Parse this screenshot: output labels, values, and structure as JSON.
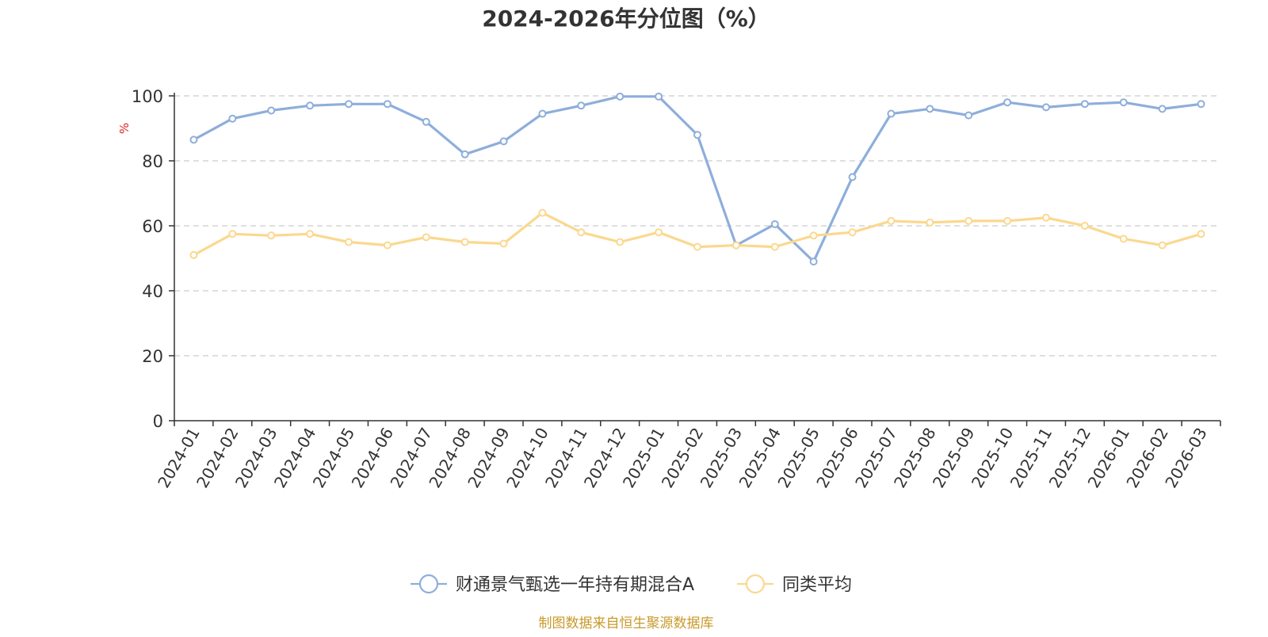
{
  "chart_data": {
    "type": "line",
    "title": "2024-2026年分位图（%）",
    "ylabel": "%",
    "xlabel": "",
    "ylim": [
      0,
      100
    ],
    "yticks": [
      0,
      20,
      40,
      60,
      80,
      100
    ],
    "grid": true,
    "legend_position": "bottom",
    "categories": [
      "2024-01",
      "2024-02",
      "2024-03",
      "2024-04",
      "2024-05",
      "2024-06",
      "2024-07",
      "2024-08",
      "2024-09",
      "2024-10",
      "2024-11",
      "2024-12",
      "2025-01",
      "2025-02",
      "2025-03",
      "2025-04",
      "2025-05",
      "2025-06",
      "2025-07",
      "2025-08",
      "2025-09",
      "2025-10",
      "2025-11",
      "2025-12",
      "2026-01",
      "2026-02",
      "2026-03"
    ],
    "series": [
      {
        "name": "财通景气甄选一年持有期混合A",
        "color": "#8eaedb",
        "values": [
          86.5,
          93,
          95.5,
          97,
          97.5,
          97.5,
          92,
          82,
          86,
          94.5,
          97,
          99.8,
          99.8,
          88,
          54,
          60.5,
          49,
          75,
          94.5,
          96,
          94,
          98,
          96.5,
          97.5,
          98,
          96,
          97.5
        ]
      },
      {
        "name": "同类平均",
        "color": "#fbd88f",
        "values": [
          51,
          57.5,
          57,
          57.5,
          55,
          54,
          56.5,
          55,
          54.5,
          64,
          58,
          55,
          58,
          53.5,
          54,
          53.5,
          57,
          58,
          61.5,
          61,
          61.5,
          61.5,
          62.5,
          60,
          56,
          54,
          57.5
        ]
      }
    ]
  },
  "footer": {
    "source": "制图数据来自恒生聚源数据库",
    "source_color": "#c89a2a"
  }
}
